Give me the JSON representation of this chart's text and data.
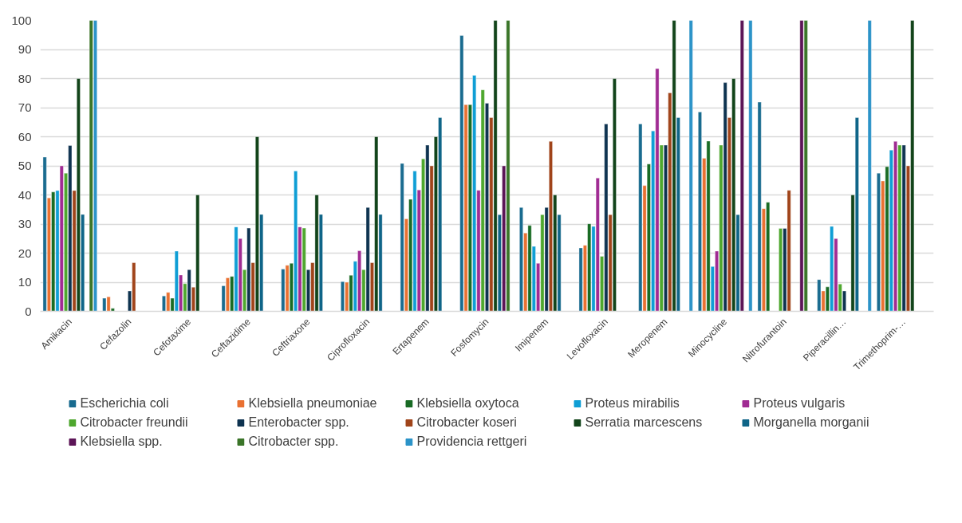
{
  "chart_data": {
    "type": "bar",
    "categories": [
      "Amikacin",
      "Cefazolin",
      "Cefotaxime",
      "Ceftazidime",
      "Ceftriaxone",
      "Ciprofloxacin",
      "Ertapenem",
      "Fosfomycin",
      "Imipenem",
      "Levofloxacin",
      "Meropenem",
      "Minocycline",
      "Nitrofurantoin",
      "Piperacillin…",
      "Trimethoprim-…"
    ],
    "series": [
      {
        "name": "Escherichia coli",
        "color": "#196b8f",
        "values": [
          53,
          4.5,
          5.3,
          8.8,
          14.5,
          10.2,
          50.8,
          94.8,
          35.7,
          21.8,
          64.4,
          68.5,
          71.9,
          10.9,
          47.5
        ]
      },
      {
        "name": "Klebsiella pneumoniae",
        "color": "#e97132",
        "values": [
          39,
          5,
          6.5,
          11.5,
          15.8,
          10,
          31.8,
          71,
          26.9,
          22.7,
          43.2,
          52.6,
          35.3,
          7,
          44.8
        ]
      },
      {
        "name": "Klebsiella oxytoca",
        "color": "#196b24",
        "values": [
          41,
          1,
          4.5,
          12,
          16.5,
          12.4,
          38.5,
          71,
          29.5,
          30.1,
          50.6,
          58.5,
          37.5,
          8.4,
          49.7
        ]
      },
      {
        "name": "Proteus mirabilis",
        "color": "#0f9ed5",
        "values": [
          41.5,
          null,
          20.7,
          29,
          48.2,
          17.2,
          48.2,
          81.1,
          22.3,
          29.2,
          62,
          15.4,
          null,
          29.2,
          55.4
        ]
      },
      {
        "name": "Proteus vulgaris",
        "color": "#a02b93",
        "values": [
          50,
          null,
          12.5,
          25,
          29,
          20.8,
          41.7,
          41.6,
          16.5,
          45.8,
          83.4,
          20.7,
          null,
          25,
          58.4
        ]
      },
      {
        "name": "Citrobacter freundii",
        "color": "#4ea72e",
        "values": [
          47.5,
          null,
          9.5,
          14.3,
          28.6,
          14.3,
          52.4,
          76.1,
          33.2,
          18.9,
          57.1,
          57.1,
          28.5,
          9.4,
          57.1
        ]
      },
      {
        "name": "Enterobacter spp.",
        "color": "#0e3350",
        "values": [
          57,
          7,
          14.3,
          28.6,
          14.3,
          35.7,
          57.1,
          71.5,
          35.7,
          64.4,
          57.1,
          78.6,
          28.5,
          7,
          57.1
        ]
      },
      {
        "name": "Citrobacter koseri",
        "color": "#a0441a",
        "values": [
          41.5,
          16.7,
          8.3,
          16.7,
          16.7,
          16.7,
          50,
          66.6,
          58.4,
          33.2,
          75.1,
          66.6,
          41.6,
          null,
          50
        ]
      },
      {
        "name": "Serratia marcescens",
        "color": "#12441a",
        "values": [
          80,
          null,
          40,
          60,
          40,
          60,
          60,
          100,
          40,
          80,
          100,
          80,
          null,
          40,
          100
        ]
      },
      {
        "name": "Morganella morganii",
        "color": "#0f6588",
        "values": [
          33.3,
          null,
          null,
          33.3,
          33.3,
          33.3,
          66.6,
          33.2,
          33.2,
          null,
          66.6,
          33.2,
          null,
          66.6,
          null
        ]
      },
      {
        "name": "Klebsiella spp.",
        "color": "#5c1557",
        "values": [
          null,
          null,
          null,
          null,
          null,
          null,
          null,
          50,
          null,
          null,
          null,
          100,
          100,
          null,
          null
        ]
      },
      {
        "name": "Citrobacter spp.",
        "color": "#3a7528",
        "values": [
          100,
          null,
          null,
          null,
          null,
          null,
          null,
          100,
          null,
          null,
          null,
          null,
          100,
          null,
          null
        ]
      },
      {
        "name": "Providencia rettgeri",
        "color": "#2b93c8",
        "values": [
          100,
          null,
          null,
          null,
          null,
          null,
          null,
          null,
          null,
          null,
          100,
          100,
          null,
          100,
          null
        ]
      }
    ],
    "ylim": [
      0,
      100
    ],
    "yticks": [
      0,
      10,
      20,
      30,
      40,
      50,
      60,
      70,
      80,
      90,
      100
    ],
    "grid": "y",
    "legend": "bottom"
  }
}
